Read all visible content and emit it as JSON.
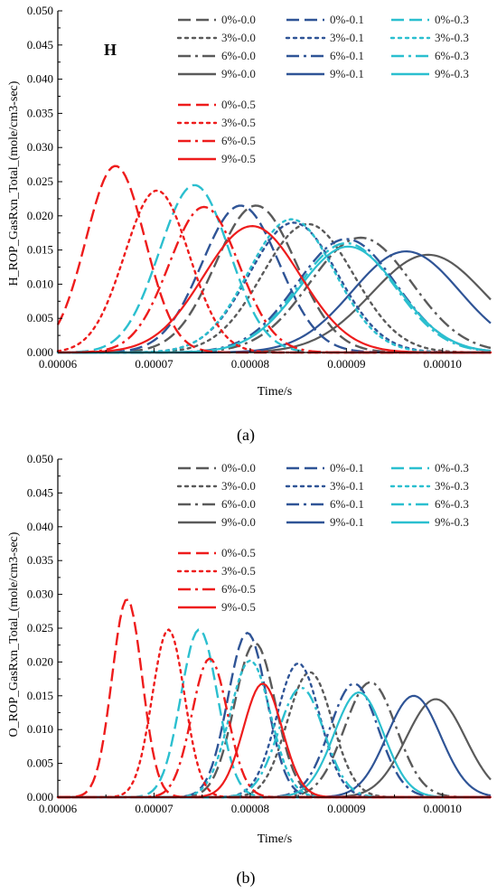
{
  "colors": {
    "gray": "#5a5a5a",
    "navy": "#2f5496",
    "cyan": "#2bbfcf",
    "red": "#ee1c1c"
  },
  "legend_entries": [
    {
      "label": "0%-0.0",
      "color": "gray",
      "dash": "dash"
    },
    {
      "label": "0%-0.1",
      "color": "navy",
      "dash": "dash"
    },
    {
      "label": "0%-0.3",
      "color": "cyan",
      "dash": "dash"
    },
    {
      "label": "3%-0.0",
      "color": "gray",
      "dash": "dot"
    },
    {
      "label": "3%-0.1",
      "color": "navy",
      "dash": "dot"
    },
    {
      "label": "3%-0.3",
      "color": "cyan",
      "dash": "dot"
    },
    {
      "label": "6%-0.0",
      "color": "gray",
      "dash": "dashdot"
    },
    {
      "label": "6%-0.1",
      "color": "navy",
      "dash": "dashdot"
    },
    {
      "label": "6%-0.3",
      "color": "cyan",
      "dash": "dashdot"
    },
    {
      "label": "9%-0.0",
      "color": "gray",
      "dash": "solid"
    },
    {
      "label": "9%-0.1",
      "color": "navy",
      "dash": "solid"
    },
    {
      "label": "9%-0.3",
      "color": "cyan",
      "dash": "solid"
    },
    {
      "label": "0%-0.5",
      "color": "red",
      "dash": "dash"
    },
    {
      "label": "3%-0.5",
      "color": "red",
      "dash": "dot"
    },
    {
      "label": "6%-0.5",
      "color": "red",
      "dash": "dashdot"
    },
    {
      "label": "9%-0.5",
      "color": "red",
      "dash": "solid"
    }
  ],
  "chart_data": [
    {
      "type": "line",
      "panel_caption": "(a)",
      "tag": "H",
      "xlabel": "Time/s",
      "ylabel": "H_ROP_GasRxn_Total_(mole/cm3-sec)",
      "xlim": [
        6e-05,
        0.000105
      ],
      "ylim": [
        0,
        0.05
      ],
      "xticks": [
        "0.00006",
        "0.00007",
        "0.00008",
        "0.00009",
        "0.00010"
      ],
      "yticks": [
        "0.000",
        "0.005",
        "0.010",
        "0.015",
        "0.020",
        "0.025",
        "0.030",
        "0.035",
        "0.040",
        "0.045",
        "0.050"
      ],
      "legend": "top-right",
      "series": [
        {
          "name": "0%-0.0",
          "peak_time": 8.06e-05,
          "peak": 0.0215,
          "width": 7.5e-06
        },
        {
          "name": "3%-0.0",
          "peak_time": 8.6e-05,
          "peak": 0.0188,
          "width": 8.5e-06
        },
        {
          "name": "6%-0.0",
          "peak_time": 9.15e-05,
          "peak": 0.0168,
          "width": 9.5e-06
        },
        {
          "name": "9%-0.0",
          "peak_time": 9.85e-05,
          "peak": 0.0143,
          "width": 1.05e-05
        },
        {
          "name": "0%-0.1",
          "peak_time": 7.9e-05,
          "peak": 0.0215,
          "width": 7.2e-06
        },
        {
          "name": "3%-0.1",
          "peak_time": 8.45e-05,
          "peak": 0.019,
          "width": 8.2e-06
        },
        {
          "name": "6%-0.1",
          "peak_time": 9e-05,
          "peak": 0.0166,
          "width": 9.2e-06
        },
        {
          "name": "9%-0.1",
          "peak_time": 9.62e-05,
          "peak": 0.0148,
          "width": 1e-05
        },
        {
          "name": "0%-0.3",
          "peak_time": 7.42e-05,
          "peak": 0.0245,
          "width": 6.5e-06
        },
        {
          "name": "3%-0.3",
          "peak_time": 8.43e-05,
          "peak": 0.0195,
          "width": 8e-06
        },
        {
          "name": "6%-0.3",
          "peak_time": 9e-05,
          "peak": 0.016,
          "width": 9e-06
        },
        {
          "name": "9%-0.3",
          "peak_time": 9.02e-05,
          "peak": 0.0155,
          "width": 9.2e-06
        },
        {
          "name": "0%-0.5",
          "peak_time": 6.6e-05,
          "peak": 0.0273,
          "width": 5.5e-06
        },
        {
          "name": "3%-0.5",
          "peak_time": 7.03e-05,
          "peak": 0.0237,
          "width": 6e-06
        },
        {
          "name": "6%-0.5",
          "peak_time": 7.52e-05,
          "peak": 0.0213,
          "width": 6.5e-06
        },
        {
          "name": "9%-0.5",
          "peak_time": 8.02e-05,
          "peak": 0.0185,
          "width": 9e-06
        }
      ]
    },
    {
      "type": "line",
      "panel_caption": "(b)",
      "tag": "",
      "xlabel": "Time/s",
      "ylabel": "O_ROP_GasRxn_Total_(mole/cm3-sec)",
      "xlim": [
        6e-05,
        0.000105
      ],
      "ylim": [
        0,
        0.05
      ],
      "xticks": [
        "0.00006",
        "0.00007",
        "0.00008",
        "0.00009",
        "0.00010"
      ],
      "yticks": [
        "0.000",
        "0.005",
        "0.010",
        "0.015",
        "0.020",
        "0.025",
        "0.030",
        "0.035",
        "0.040",
        "0.045",
        "0.050"
      ],
      "legend": "top-right",
      "series": [
        {
          "name": "0%-0.0",
          "peak_time": 8.05e-05,
          "peak": 0.0228,
          "width": 3.8e-06
        },
        {
          "name": "3%-0.0",
          "peak_time": 8.62e-05,
          "peak": 0.0185,
          "width": 4.2e-06
        },
        {
          "name": "6%-0.0",
          "peak_time": 9.25e-05,
          "peak": 0.017,
          "width": 4.8e-06
        },
        {
          "name": "9%-0.0",
          "peak_time": 9.93e-05,
          "peak": 0.0145,
          "width": 5.5e-06
        },
        {
          "name": "0%-0.1",
          "peak_time": 7.97e-05,
          "peak": 0.0243,
          "width": 3.6e-06
        },
        {
          "name": "3%-0.1",
          "peak_time": 8.5e-05,
          "peak": 0.0198,
          "width": 4e-06
        },
        {
          "name": "6%-0.1",
          "peak_time": 9.08e-05,
          "peak": 0.0168,
          "width": 4.5e-06
        },
        {
          "name": "9%-0.1",
          "peak_time": 9.7e-05,
          "peak": 0.015,
          "width": 5e-06
        },
        {
          "name": "0%-0.3",
          "peak_time": 7.47e-05,
          "peak": 0.0248,
          "width": 3.4e-06
        },
        {
          "name": "3%-0.3",
          "peak_time": 8e-05,
          "peak": 0.0202,
          "width": 3.8e-06
        },
        {
          "name": "6%-0.3",
          "peak_time": 8.53e-05,
          "peak": 0.0162,
          "width": 4.2e-06
        },
        {
          "name": "9%-0.3",
          "peak_time": 9.13e-05,
          "peak": 0.0155,
          "width": 4.6e-06
        },
        {
          "name": "0%-0.5",
          "peak_time": 6.72e-05,
          "peak": 0.0293,
          "width": 2.8e-06
        },
        {
          "name": "3%-0.5",
          "peak_time": 7.15e-05,
          "peak": 0.0248,
          "width": 3e-06
        },
        {
          "name": "6%-0.5",
          "peak_time": 7.58e-05,
          "peak": 0.0205,
          "width": 3.3e-06
        },
        {
          "name": "9%-0.5",
          "peak_time": 8.13e-05,
          "peak": 0.0168,
          "width": 3.6e-06
        }
      ]
    }
  ]
}
